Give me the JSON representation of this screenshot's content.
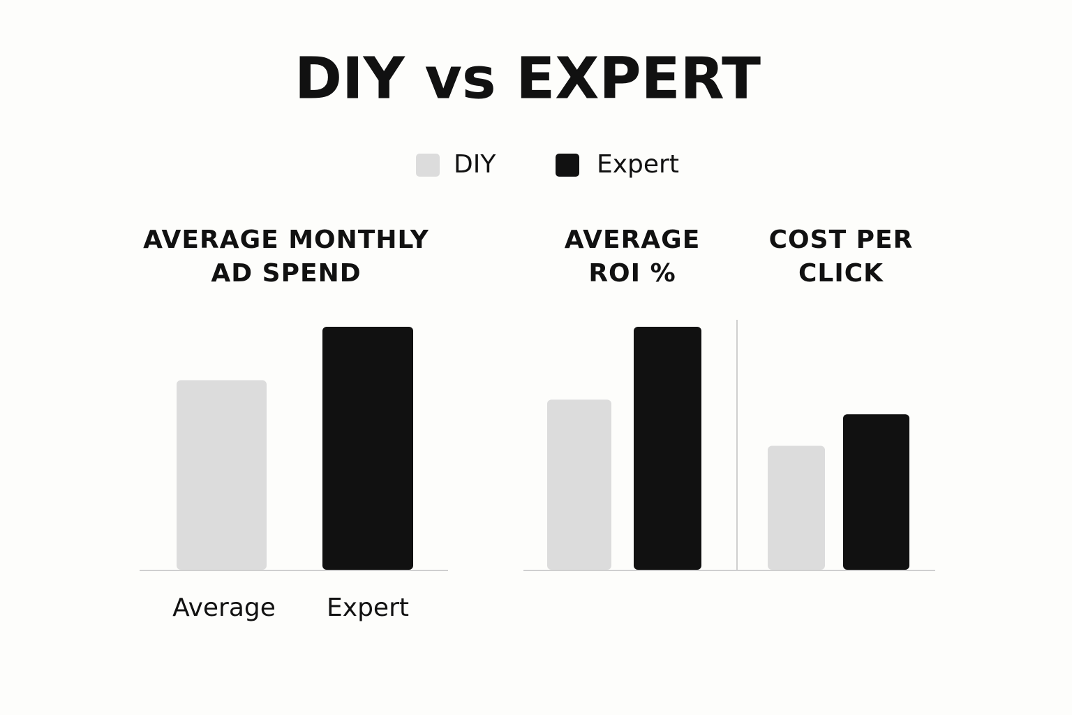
{
  "title": "DIY vs EXPERT",
  "legend": [
    {
      "name": "DIY",
      "color": "#dcdcdc"
    },
    {
      "name": "Expert",
      "color": "#111111"
    }
  ],
  "chart_data": [
    {
      "type": "bar",
      "title": "AVERAGE MONTHLY\nAD SPEND",
      "categories": [
        "Average",
        "Expert"
      ],
      "values": [
        78,
        100
      ],
      "colors": [
        "#dcdcdc",
        "#111111"
      ],
      "ylim": [
        0,
        100
      ]
    },
    {
      "type": "bar",
      "title": "AVERAGE\nROI %",
      "categories": [
        null,
        null
      ],
      "values": [
        70,
        100
      ],
      "colors": [
        "#dcdcdc",
        "#111111"
      ],
      "ylim": [
        0,
        100
      ]
    },
    {
      "type": "bar",
      "title": "COST PER\nCLICK",
      "categories": [
        null,
        null
      ],
      "values": [
        51,
        64
      ],
      "colors": [
        "#dcdcdc",
        "#111111"
      ],
      "ylim": [
        0,
        100
      ]
    }
  ]
}
